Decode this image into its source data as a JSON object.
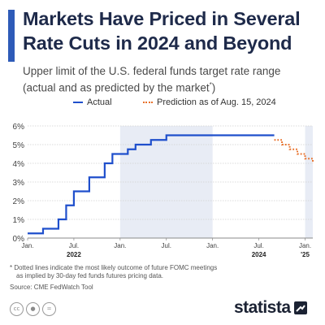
{
  "header": {
    "title": "Markets Have Priced in Several Rate Cuts in 2024 and Beyond",
    "subtitle_main": "Upper limit of the U.S. federal funds target rate range",
    "subtitle_paren": "(actual and as predicted by the market",
    "subtitle_mark": "*",
    "subtitle_close": ")"
  },
  "legend": {
    "actual": "Actual",
    "prediction": "Prediction as of Aug. 15, 2024"
  },
  "colors": {
    "actual": "#1f4fcc",
    "prediction": "#e8702a",
    "band": "#e8ecf5",
    "grid": "#cfcfcf",
    "axis_text": "#444444"
  },
  "chart_data": {
    "type": "line",
    "ylim": [
      0,
      6
    ],
    "yticks": [
      0,
      1,
      2,
      3,
      4,
      5,
      6
    ],
    "ytick_format": "{v}%",
    "xlim": [
      "2022-01",
      "2025-02"
    ],
    "xticks": [
      {
        "x": "2022-01",
        "label": "Jan."
      },
      {
        "x": "2022-07",
        "label": "Jul."
      },
      {
        "x": "2023-01",
        "label": "Jan."
      },
      {
        "x": "2023-07",
        "label": "Jul."
      },
      {
        "x": "2024-01",
        "label": "Jan."
      },
      {
        "x": "2024-07",
        "label": "Jul."
      },
      {
        "x": "2025-01",
        "label": "Jan."
      }
    ],
    "year_labels": [
      {
        "x": "2022-07",
        "label": "2022"
      },
      {
        "x": "2024-07",
        "label": "2024"
      },
      {
        "x": "2025-01",
        "label": "'25"
      }
    ],
    "shaded_years": [
      [
        "2023-01",
        "2024-01"
      ],
      [
        "2025-01",
        "2025-02"
      ]
    ],
    "series": [
      {
        "name": "Actual",
        "style": "solid",
        "step": true,
        "points": [
          [
            "2022-01",
            0.25
          ],
          [
            "2022-03",
            0.5
          ],
          [
            "2022-05",
            1.0
          ],
          [
            "2022-06",
            1.75
          ],
          [
            "2022-07",
            2.5
          ],
          [
            "2022-09",
            3.25
          ],
          [
            "2022-11",
            4.0
          ],
          [
            "2022-12",
            4.5
          ],
          [
            "2023-02",
            4.75
          ],
          [
            "2023-03",
            5.0
          ],
          [
            "2023-05",
            5.25
          ],
          [
            "2023-07",
            5.5
          ],
          [
            "2024-09",
            5.5
          ]
        ]
      },
      {
        "name": "Prediction as of Aug. 15, 2024",
        "style": "dotted",
        "step": true,
        "points": [
          [
            "2024-09",
            5.25
          ],
          [
            "2024-10",
            5.0
          ],
          [
            "2024-11",
            4.75
          ],
          [
            "2024-12",
            4.5
          ],
          [
            "2025-01",
            4.25
          ],
          [
            "2025-02",
            4.0
          ]
        ]
      }
    ]
  },
  "footnote": {
    "line1": "* Dotted lines indicate the most likely outcome of future FOMC meetings",
    "line2": "as implied by 30-day fed funds futures pricing data."
  },
  "source": "Source: CME FedWatch Tool",
  "brand": {
    "name": "statista",
    "license_icons": [
      "cc-icon",
      "person-icon",
      "equals-icon"
    ]
  }
}
